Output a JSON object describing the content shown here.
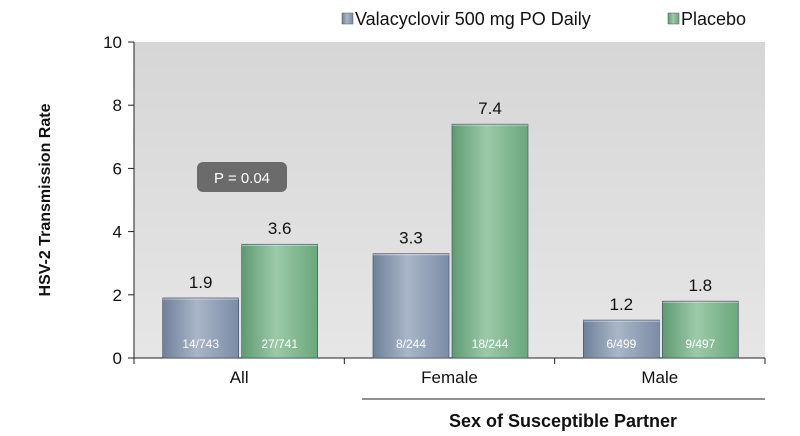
{
  "chart_data": {
    "type": "bar",
    "title": "",
    "ylabel": "HSV-2 Transmission Rate",
    "xlabel": "",
    "ylim": [
      0,
      10
    ],
    "yticks": [
      0,
      2,
      4,
      6,
      8,
      10
    ],
    "categories": [
      "All",
      "Female",
      "Male"
    ],
    "series": [
      {
        "name": "Valacyclovir 500 mg PO Daily",
        "color": "#8a9bb4",
        "values": [
          1.9,
          3.3,
          1.2
        ],
        "value_labels": [
          "1.9",
          "3.3",
          "1.2"
        ],
        "fraction_labels": [
          "14/743",
          "8/244",
          "6/499"
        ]
      },
      {
        "name": "Placebo",
        "color": "#7cb48e",
        "values": [
          3.6,
          7.4,
          1.8
        ],
        "value_labels": [
          "3.6",
          "7.4",
          "1.8"
        ],
        "fraction_labels": [
          "27/741",
          "18/244",
          "9/497"
        ]
      }
    ],
    "legend_placement": "top-right",
    "annotation": "P = 0.04",
    "group_title": "Sex of Susceptible Partner",
    "colors": {
      "plot_background": "#dcdcdc",
      "annotation_box": "#6b6b6b"
    }
  }
}
